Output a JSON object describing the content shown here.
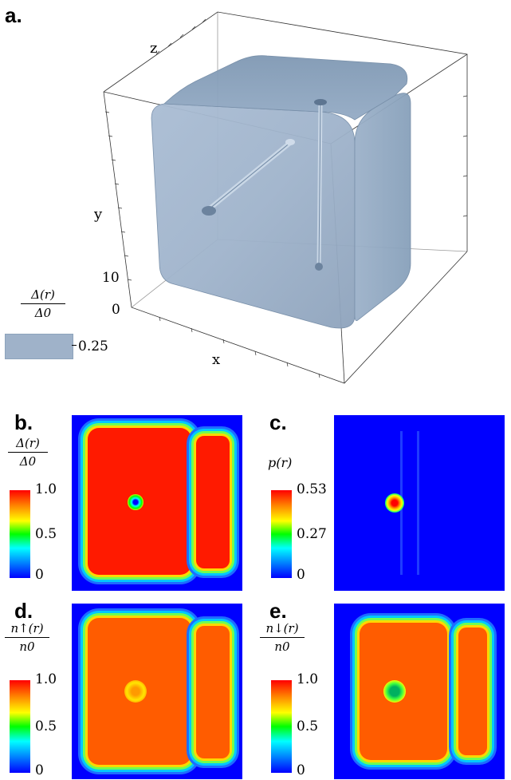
{
  "panels": {
    "a": {
      "label": "a.",
      "axis_x": "x",
      "axis_y": "y",
      "axis_z": "z",
      "tick_10": "10",
      "tick_0": "0",
      "legend_num": "Δ(r)",
      "legend_den": "Δ0",
      "legend_value": "0.25",
      "isosurface_color": "#8fa6c0"
    },
    "b": {
      "label": "b.",
      "cbar_num": "Δ(r)",
      "cbar_den": "Δ0",
      "ticks": [
        "1.0",
        "0.5",
        "0"
      ]
    },
    "c": {
      "label": "c.",
      "cbar_title": "p(r)",
      "ticks": [
        "0.53",
        "0.27",
        "0"
      ]
    },
    "d": {
      "label": "d.",
      "cbar_num": "n↑(r)",
      "cbar_den": "n0",
      "ticks": [
        "1.0",
        "0.5",
        "0"
      ]
    },
    "e": {
      "label": "e.",
      "cbar_num": "n↓(r)",
      "cbar_den": "n0",
      "ticks": [
        "1.0",
        "0.5",
        "0"
      ]
    }
  },
  "colormap": [
    "#ff0000",
    "#ffff00",
    "#00ff00",
    "#00ffff",
    "#0000ff"
  ]
}
